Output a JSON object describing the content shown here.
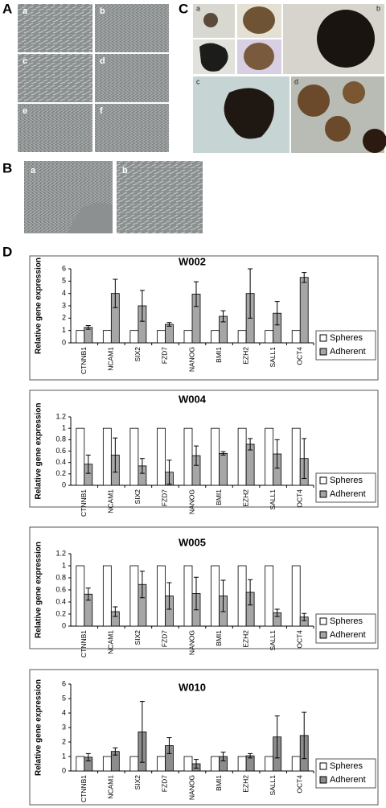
{
  "panels": [
    {
      "label": "A",
      "sublabels": [
        "a",
        "b",
        "c",
        "d",
        "e",
        "f"
      ]
    },
    {
      "label": "B",
      "sublabels": [
        "a",
        "b"
      ]
    },
    {
      "label": "C",
      "sublabels": [
        "a",
        "b",
        "c",
        "d"
      ]
    },
    {
      "label": "D"
    }
  ],
  "chart_data": [
    {
      "type": "bar",
      "title": "W002",
      "y_label": "Relative gene expression",
      "categories": [
        "CTNNB1",
        "NCAM1",
        "SIX2",
        "FZD7",
        "NANOG",
        "BMI1",
        "EZH2",
        "SALL1",
        "OCT4"
      ],
      "series": [
        {
          "name": "Spheres",
          "color": "#ffffff",
          "values": [
            1,
            1,
            1,
            1,
            1,
            1,
            1,
            1,
            1
          ]
        },
        {
          "name": "Adherent",
          "color": "#a6a6a6",
          "values": [
            1.25,
            4.0,
            3.0,
            1.5,
            3.95,
            2.15,
            4.0,
            2.4,
            5.3
          ],
          "errors": [
            0.15,
            1.15,
            1.25,
            0.15,
            1.0,
            0.45,
            2.0,
            0.95,
            0.4
          ]
        }
      ],
      "ylim": [
        0,
        6
      ],
      "yticks": [
        0,
        1,
        2,
        3,
        4,
        5,
        6
      ],
      "legend": "right"
    },
    {
      "type": "bar",
      "title": "W004",
      "y_label": "Relative gene expression",
      "categories": [
        "CTNNB1",
        "NCAM1",
        "SIX2",
        "FZD7",
        "NANOG",
        "BMI1",
        "EZH2",
        "SALL1",
        "OCT4"
      ],
      "series": [
        {
          "name": "Spheres",
          "color": "#ffffff",
          "values": [
            1,
            1,
            1,
            1,
            1,
            1,
            1,
            1,
            1
          ]
        },
        {
          "name": "Adherent",
          "color": "#a6a6a6",
          "values": [
            0.37,
            0.53,
            0.34,
            0.23,
            0.52,
            0.56,
            0.72,
            0.55,
            0.47
          ],
          "errors": [
            0.16,
            0.3,
            0.13,
            0.21,
            0.17,
            0.03,
            0.1,
            0.25,
            0.35
          ]
        }
      ],
      "ylim": [
        0,
        1.2
      ],
      "yticks": [
        0,
        0.2,
        0.4,
        0.6,
        0.8,
        1,
        1.2
      ],
      "legend": "right"
    },
    {
      "type": "bar",
      "title": "W005",
      "y_label": "Relative gene expression",
      "categories": [
        "CTNNB1",
        "NCAM1",
        "SIX2",
        "FZD7",
        "NANOG",
        "BMI1",
        "EZH2",
        "SALL1",
        "OCT4"
      ],
      "series": [
        {
          "name": "Spheres",
          "color": "#ffffff",
          "values": [
            1,
            1,
            1,
            1,
            1,
            1,
            1,
            1,
            1
          ]
        },
        {
          "name": "Adherent",
          "color": "#a6a6a6",
          "values": [
            0.53,
            0.24,
            0.69,
            0.5,
            0.54,
            0.5,
            0.56,
            0.22,
            0.15
          ],
          "errors": [
            0.1,
            0.08,
            0.22,
            0.22,
            0.27,
            0.26,
            0.21,
            0.06,
            0.06
          ]
        }
      ],
      "ylim": [
        0,
        1.2
      ],
      "yticks": [
        0,
        0.2,
        0.4,
        0.6,
        0.8,
        1,
        1.2
      ],
      "legend": "right"
    },
    {
      "type": "bar",
      "title": "W010",
      "y_label": "Relative gene expression",
      "categories": [
        "CTNNB1",
        "NCAM1",
        "SIX2",
        "FZD7",
        "NANOG",
        "BMI1",
        "EZH2",
        "SALL1",
        "OCT4"
      ],
      "series": [
        {
          "name": "Spheres",
          "color": "#ffffff",
          "values": [
            1,
            1,
            1,
            1,
            1,
            1,
            1,
            1,
            1
          ]
        },
        {
          "name": "Adherent",
          "color": "#8c8c8c",
          "values": [
            0.95,
            1.35,
            2.7,
            1.75,
            0.5,
            1.0,
            1.05,
            2.35,
            2.45
          ],
          "errors": [
            0.25,
            0.25,
            2.1,
            0.55,
            0.3,
            0.3,
            0.15,
            1.45,
            1.6
          ]
        }
      ],
      "ylim": [
        0,
        6
      ],
      "yticks": [
        0,
        1,
        2,
        3,
        4,
        5,
        6
      ],
      "legend": "right"
    }
  ]
}
